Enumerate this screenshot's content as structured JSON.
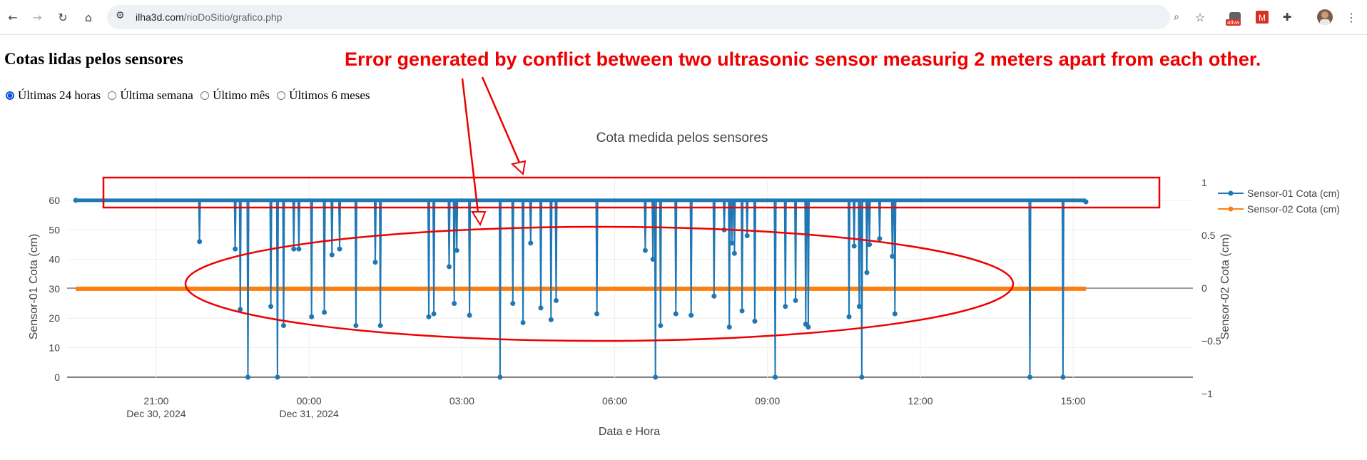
{
  "browser": {
    "url_host": "ilha3d.com",
    "url_path": "/rioDoSitio/grafico.php",
    "extension_badge": "ativa"
  },
  "page": {
    "title": "Cotas lidas pelos sensores",
    "options": [
      {
        "label": "Últimas 24 horas",
        "checked": true
      },
      {
        "label": "Última semana",
        "checked": false
      },
      {
        "label": "Último mês",
        "checked": false
      },
      {
        "label": "Últimos 6 meses",
        "checked": false
      }
    ]
  },
  "annotation": {
    "text": "Error generated by conflict between two ultrasonic sensor measurig 2 meters apart from each other.",
    "color": "#ee0000"
  },
  "chart_data": {
    "type": "line",
    "title": "Cota medida pelos sensores",
    "xlabel": "Data e Hora",
    "ylabel": "Sensor-01 Cota (cm)",
    "y2label": "Sensor-02 Cota (cm)",
    "ylim": [
      -1,
      67
    ],
    "y2lim": [
      -1,
      1
    ],
    "yticks": [
      "0",
      "10",
      "20",
      "30",
      "40",
      "50",
      "60"
    ],
    "y2ticks": [
      "−1",
      "−0.5",
      "0",
      "0.5",
      "1"
    ],
    "xticks": [
      {
        "label": "21:00",
        "sub": "Dec 30, 2024",
        "hour": -3
      },
      {
        "label": "00:00",
        "sub": "Dec 31, 2024",
        "hour": 0
      },
      {
        "label": "03:00",
        "sub": "",
        "hour": 3
      },
      {
        "label": "06:00",
        "sub": "",
        "hour": 6
      },
      {
        "label": "09:00",
        "sub": "",
        "hour": 9
      },
      {
        "label": "12:00",
        "sub": "",
        "hour": 12
      },
      {
        "label": "15:00",
        "sub": "",
        "hour": 15
      }
    ],
    "x_range_hours": [
      -4.75,
      17.35
    ],
    "start_hour": -4.58,
    "end_hour": 15.25,
    "grid": true,
    "legend_position": "top-right",
    "series": [
      {
        "name": "Sensor-01 Cota (cm)",
        "color": "#1f77b4",
        "axis": "y",
        "baseline": 60,
        "dips": [
          [
            -2.15,
            46
          ],
          [
            -1.45,
            43.5
          ],
          [
            -1.35,
            23
          ],
          [
            -1.2,
            0
          ],
          [
            -0.75,
            24
          ],
          [
            -0.62,
            0
          ],
          [
            -0.5,
            17.5
          ],
          [
            -0.3,
            43.5
          ],
          [
            -0.2,
            43.5
          ],
          [
            0.05,
            20.5
          ],
          [
            0.3,
            22
          ],
          [
            0.45,
            41.5
          ],
          [
            0.6,
            43.5
          ],
          [
            0.92,
            17.5
          ],
          [
            1.3,
            39
          ],
          [
            1.4,
            17.5
          ],
          [
            2.35,
            20.5
          ],
          [
            2.45,
            21.5
          ],
          [
            2.75,
            37.5
          ],
          [
            2.85,
            25
          ],
          [
            2.9,
            43
          ],
          [
            3.15,
            21
          ],
          [
            3.75,
            0
          ],
          [
            4.0,
            25
          ],
          [
            4.2,
            18.5
          ],
          [
            4.35,
            45.5
          ],
          [
            4.55,
            23.5
          ],
          [
            4.75,
            19.5
          ],
          [
            4.85,
            26
          ],
          [
            5.65,
            21.5
          ],
          [
            6.6,
            43
          ],
          [
            6.75,
            40
          ],
          [
            6.8,
            0
          ],
          [
            6.9,
            17.5
          ],
          [
            7.2,
            21.5
          ],
          [
            7.5,
            21
          ],
          [
            7.95,
            27.5
          ],
          [
            8.15,
            50
          ],
          [
            8.25,
            17
          ],
          [
            8.3,
            45.5
          ],
          [
            8.35,
            42
          ],
          [
            8.5,
            22.5
          ],
          [
            8.6,
            48
          ],
          [
            8.75,
            19
          ],
          [
            9.15,
            0
          ],
          [
            9.35,
            24
          ],
          [
            9.55,
            26
          ],
          [
            9.75,
            18
          ],
          [
            9.8,
            17
          ],
          [
            10.6,
            20.5
          ],
          [
            10.7,
            44.5
          ],
          [
            10.8,
            24
          ],
          [
            10.85,
            0
          ],
          [
            10.95,
            35.5
          ],
          [
            11.0,
            45
          ],
          [
            11.2,
            47
          ],
          [
            11.45,
            41
          ],
          [
            11.5,
            21.5
          ],
          [
            14.15,
            0
          ],
          [
            14.8,
            0
          ]
        ]
      },
      {
        "name": "Sensor-02 Cota (cm)",
        "color": "#ff7f0e",
        "axis": "y2",
        "constant": 0
      }
    ]
  },
  "marks": {
    "rect_label": "highlight-rectangle",
    "ellipse_label": "highlight-ellipse"
  }
}
